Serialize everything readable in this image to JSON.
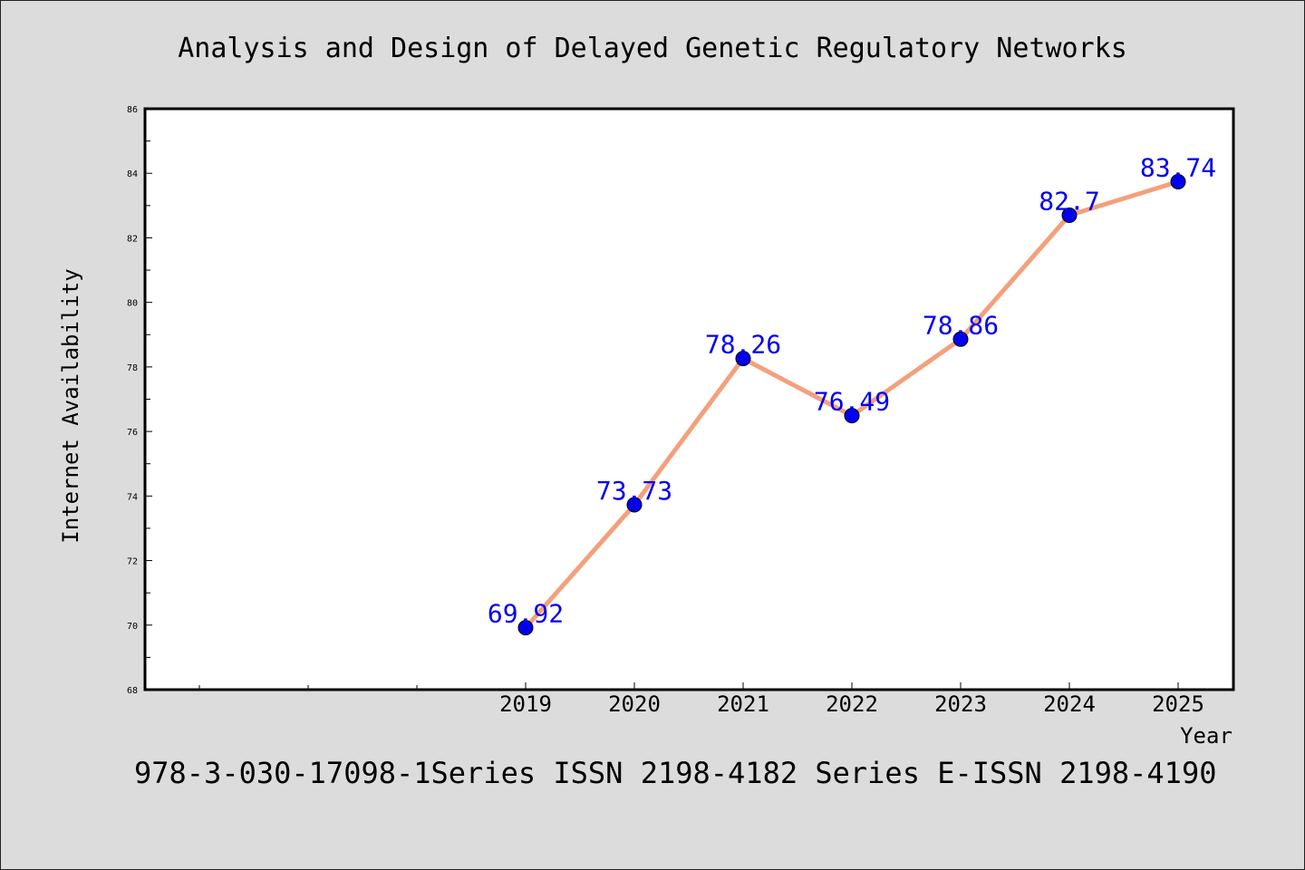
{
  "chart_data": {
    "type": "line",
    "title": "Analysis and Design of Delayed Genetic Regulatory Networks",
    "subtitle": "978-3-030-17098-1Series ISSN 2198-4182 Series E-ISSN 2198-4190",
    "xlabel": "Year",
    "ylabel": "Internet Availability",
    "x": [
      "2019",
      "2020",
      "2021",
      "2022",
      "2023",
      "2024",
      "2025"
    ],
    "series": [
      {
        "values": [
          69.92,
          73.73,
          78.26,
          76.49,
          78.86,
          82.7,
          83.74
        ]
      }
    ],
    "data_labels": [
      "69.92",
      "73.73",
      "78.26",
      "76.49",
      "78.86",
      "82.7",
      "83.74"
    ],
    "ylim": [
      68,
      86
    ],
    "yticks": [
      "68",
      "70",
      "72",
      "74",
      "76",
      "78",
      "80",
      "82",
      "84",
      "86"
    ],
    "grid": false,
    "line_color": "#f4a07c",
    "marker_color": "#0000ee",
    "label_color": "#0000ee",
    "background_color": "#dcdcdc",
    "plot_background_color": "#ffffff"
  }
}
